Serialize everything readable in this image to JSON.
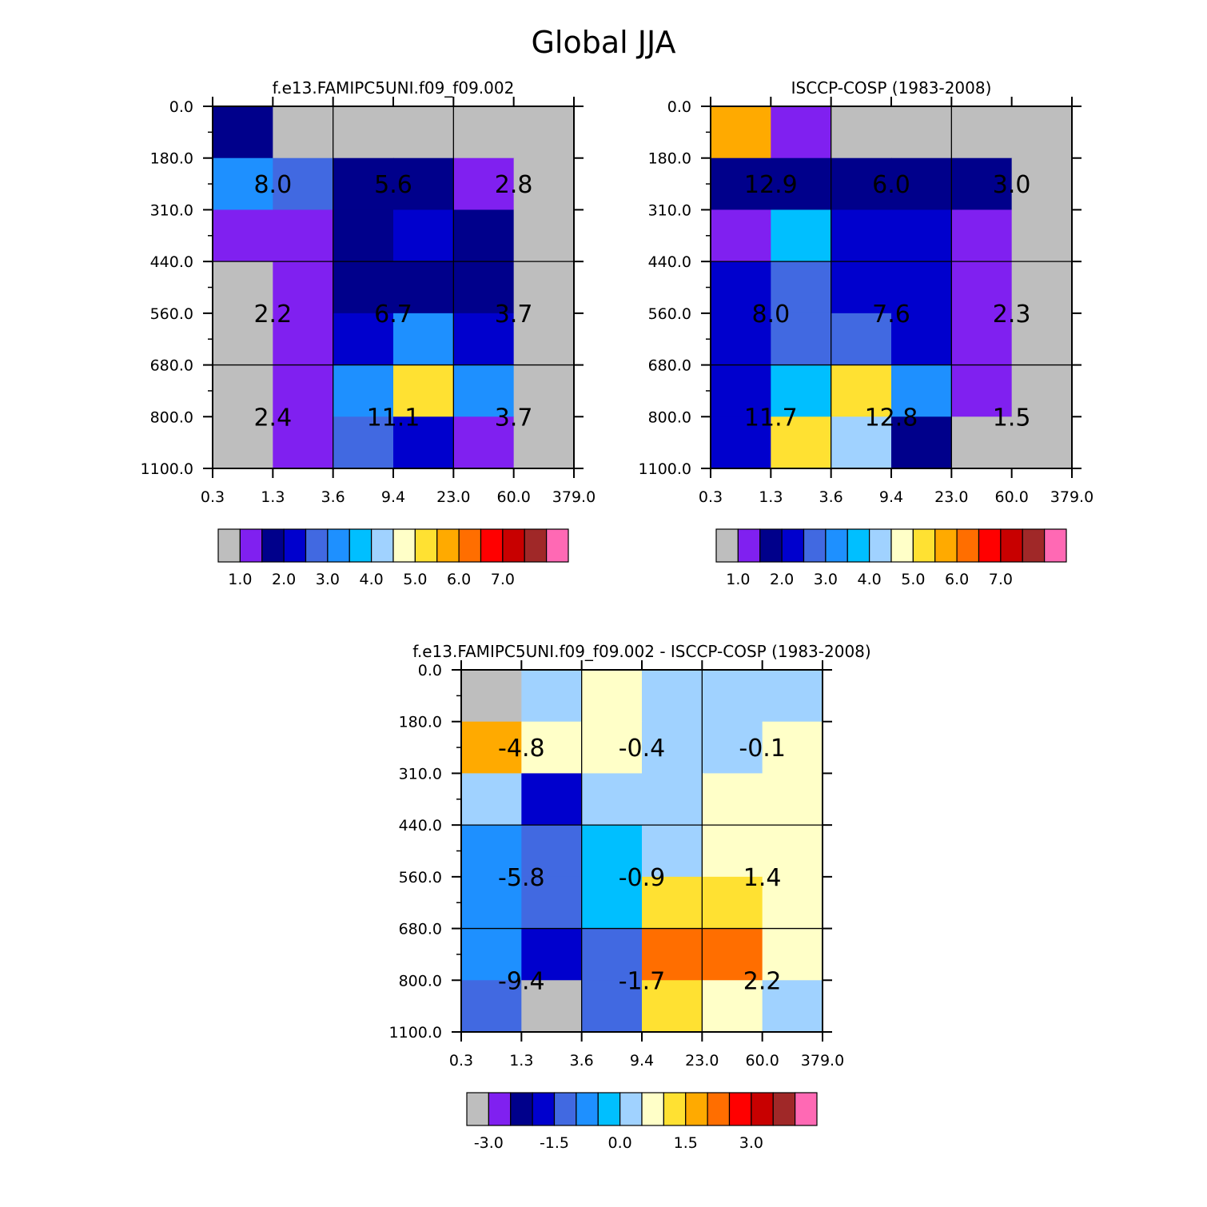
{
  "title": "Global JJA",
  "palette": [
    "#bebebe",
    "#8020f0",
    "#00008b",
    "#0000cd",
    "#4169e1",
    "#1e90ff",
    "#00bfff",
    "#a0d2ff",
    "#ffffc8",
    "#ffe132",
    "#ffaa00",
    "#ff6e00",
    "#ff0000",
    "#c80000",
    "#a02828",
    "#ff69b4"
  ],
  "chart_data": [
    {
      "type": "heatmap",
      "title": "f.e13.FAMIPC5UNI.f09_f09.002",
      "x_ticks": [
        "0.3",
        "1.3",
        "3.6",
        "9.4",
        "23.0",
        "60.0",
        "379.0"
      ],
      "y_ticks": [
        "0.0",
        "180.0",
        "310.0",
        "440.0",
        "560.0",
        "680.0",
        "800.0",
        "1100.0"
      ],
      "cells": [
        [
          2,
          0,
          0,
          0,
          0,
          0
        ],
        [
          5,
          4,
          2,
          2,
          1,
          0
        ],
        [
          1,
          1,
          2,
          3,
          2,
          0
        ],
        [
          0,
          1,
          2,
          2,
          2,
          0
        ],
        [
          0,
          1,
          3,
          5,
          3,
          0
        ],
        [
          0,
          1,
          5,
          9,
          5,
          0
        ],
        [
          0,
          1,
          4,
          3,
          1,
          0
        ]
      ],
      "block_labels": [
        [
          "8.0",
          "5.6",
          "2.8"
        ],
        [
          "2.2",
          "6.7",
          "3.7"
        ],
        [
          "2.4",
          "11.1",
          "3.7"
        ]
      ],
      "colorbar_labels": [
        "1.0",
        "2.0",
        "3.0",
        "4.0",
        "5.0",
        "6.0",
        "7.0"
      ]
    },
    {
      "type": "heatmap",
      "title": "ISCCP-COSP (1983-2008)",
      "x_ticks": [
        "0.3",
        "1.3",
        "3.6",
        "9.4",
        "23.0",
        "60.0",
        "379.0"
      ],
      "y_ticks": [
        "0.0",
        "180.0",
        "310.0",
        "440.0",
        "560.0",
        "680.0",
        "800.0",
        "1100.0"
      ],
      "cells": [
        [
          10,
          1,
          0,
          0,
          0,
          0
        ],
        [
          2,
          2,
          2,
          2,
          2,
          0
        ],
        [
          1,
          6,
          3,
          3,
          1,
          0
        ],
        [
          3,
          4,
          3,
          3,
          1,
          0
        ],
        [
          3,
          4,
          4,
          3,
          1,
          0
        ],
        [
          3,
          6,
          9,
          5,
          1,
          0
        ],
        [
          3,
          9,
          7,
          2,
          0,
          0
        ]
      ],
      "block_labels": [
        [
          "12.9",
          "6.0",
          "3.0"
        ],
        [
          "8.0",
          "7.6",
          "2.3"
        ],
        [
          "11.7",
          "12.8",
          "1.5"
        ]
      ],
      "colorbar_labels": [
        "1.0",
        "2.0",
        "3.0",
        "4.0",
        "5.0",
        "6.0",
        "7.0"
      ]
    },
    {
      "type": "heatmap",
      "title": "f.e13.FAMIPC5UNI.f09_f09.002 - ISCCP-COSP (1983-2008)",
      "x_ticks": [
        "0.3",
        "1.3",
        "3.6",
        "9.4",
        "23.0",
        "60.0",
        "379.0"
      ],
      "y_ticks": [
        "0.0",
        "180.0",
        "310.0",
        "440.0",
        "560.0",
        "680.0",
        "800.0",
        "1100.0"
      ],
      "cells": [
        [
          0,
          7,
          8,
          7,
          7,
          7
        ],
        [
          10,
          8,
          8,
          7,
          7,
          8
        ],
        [
          7,
          3,
          7,
          7,
          8,
          8
        ],
        [
          5,
          4,
          6,
          7,
          8,
          8
        ],
        [
          5,
          4,
          6,
          9,
          9,
          8
        ],
        [
          5,
          3,
          4,
          11,
          11,
          8
        ],
        [
          4,
          0,
          4,
          9,
          8,
          7
        ]
      ],
      "block_labels": [
        [
          "-4.8",
          "-0.4",
          "-0.1"
        ],
        [
          "-5.8",
          "-0.9",
          "1.4"
        ],
        [
          "-9.4",
          "-1.7",
          "2.2"
        ]
      ],
      "colorbar_labels": [
        "-3.0",
        "-1.5",
        "0.0",
        "1.5",
        "3.0"
      ]
    }
  ]
}
